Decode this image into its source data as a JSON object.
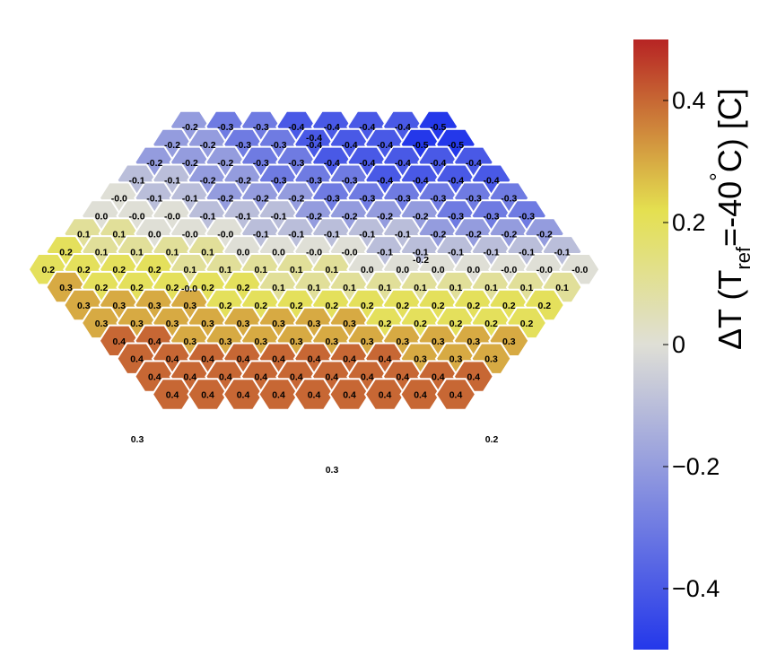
{
  "chart_data": {
    "type": "heatmap",
    "title": "",
    "colorbar": {
      "label": "ΔT (T_ref=-40°C) [C]",
      "label_parts": {
        "delta_t": "ΔT (T",
        "subscript": "ref",
        "equals": "=-40",
        "degree": "°",
        "unit": "C) [C]"
      },
      "range": [
        -0.5,
        0.5
      ],
      "ticks": [
        -0.4,
        -0.2,
        0,
        0.2,
        0.4
      ],
      "tick_labels": [
        "−0.4",
        "−0.2",
        "0",
        "0.2",
        "0.4"
      ],
      "colors": [
        "#2438ea",
        "#dfdfd6",
        "#e4e050",
        "#b72424"
      ]
    },
    "rows": [
      {
        "values": [
          "-0.2",
          "-0.3",
          "-0.3",
          "-0.4",
          "-0.4",
          "-0.4",
          "-0.4",
          "-0.5"
        ]
      },
      {
        "values": [
          "-0.2",
          "-0.2",
          "-0.3",
          "-0.3",
          "-0.4",
          "-0.4",
          "-0.4",
          "-0.5",
          "-0.5"
        ]
      },
      {
        "values": [
          "-0.2",
          "-0.2",
          "-0.2",
          "-0.3",
          "-0.3",
          "-0.4",
          "-0.4",
          "-0.4",
          "-0.4",
          "-0.4"
        ]
      },
      {
        "values": [
          "-0.1",
          "-0.1",
          "-0.2",
          "-0.2",
          "-0.3",
          "-0.3",
          "-0.3",
          "-0.4",
          "-0.4",
          "-0.4",
          "-0.4"
        ]
      },
      {
        "values": [
          "-0.0",
          "-0.1",
          "-0.1",
          "-0.2",
          "-0.2",
          "-0.2",
          "-0.3",
          "-0.3",
          "-0.3",
          "-0.3",
          "-0.3",
          "-0.3"
        ]
      },
      {
        "values": [
          "0.0",
          "-0.0",
          "-0.0",
          "-0.1",
          "-0.1",
          "-0.1",
          "-0.2",
          "-0.2",
          "-0.2",
          "-0.2",
          "-0.3",
          "-0.3",
          "-0.3"
        ]
      },
      {
        "values": [
          "0.1",
          "0.1",
          "0.0",
          "-0.0",
          "-0.0",
          "-0.1",
          "-0.1",
          "-0.1",
          "-0.1",
          "-0.1",
          "-0.2",
          "-0.2",
          "-0.2",
          "-0.2"
        ]
      },
      {
        "values": [
          "0.2",
          "0.1",
          "0.1",
          "0.1",
          "0.1",
          "0.0",
          "0.0",
          "-0.0",
          "-0.0",
          "-0.1",
          "-0.1",
          "-0.1",
          "-0.1",
          "-0.1",
          "-0.1"
        ]
      },
      {
        "values": [
          "0.2",
          "0.2",
          "0.2",
          "0.2",
          "0.1",
          "0.1",
          "0.1",
          "0.1",
          "0.1",
          "0.0",
          "0.0",
          "0.0",
          "0.0",
          "-0.0",
          "-0.0",
          "-0.0"
        ]
      },
      {
        "values": [
          "0.3",
          "0.2",
          "0.2",
          "0.2",
          "0.2",
          "0.2",
          "0.1",
          "0.1",
          "0.1",
          "0.1",
          "0.1",
          "0.1",
          "0.1",
          "0.1",
          "0.1"
        ]
      },
      {
        "values": [
          "0.3",
          "0.3",
          "0.3",
          "0.3",
          "0.2",
          "0.2",
          "0.2",
          "0.2",
          "0.2",
          "0.2",
          "0.2",
          "0.2",
          "0.2",
          "0.2"
        ]
      },
      {
        "values": [
          "0.3",
          "0.3",
          "0.3",
          "0.3",
          "0.3",
          "0.3",
          "0.3",
          "0.3",
          "0.2",
          "0.2",
          "0.2",
          "0.2",
          "0.2"
        ]
      },
      {
        "values": [
          "0.4",
          "0.4",
          "0.3",
          "0.3",
          "0.3",
          "0.3",
          "0.3",
          "0.3",
          "0.3",
          "0.3",
          "0.3",
          "0.3"
        ]
      },
      {
        "values": [
          "0.4",
          "0.4",
          "0.4",
          "0.4",
          "0.4",
          "0.4",
          "0.4",
          "0.4",
          "0.3",
          "0.3",
          "0.3"
        ]
      },
      {
        "values": [
          "0.4",
          "0.4",
          "0.4",
          "0.4",
          "0.4",
          "0.4",
          "0.4",
          "0.4",
          "0.4",
          "0.4"
        ]
      },
      {
        "values": [
          "0.4",
          "0.4",
          "0.4",
          "0.4",
          "0.4",
          "0.4",
          "0.4",
          "0.4",
          "0.4"
        ]
      }
    ],
    "extra_labels": [
      "-0.4",
      "-0.2",
      "-0.0",
      "0.3",
      "0.3",
      "0.2"
    ]
  }
}
